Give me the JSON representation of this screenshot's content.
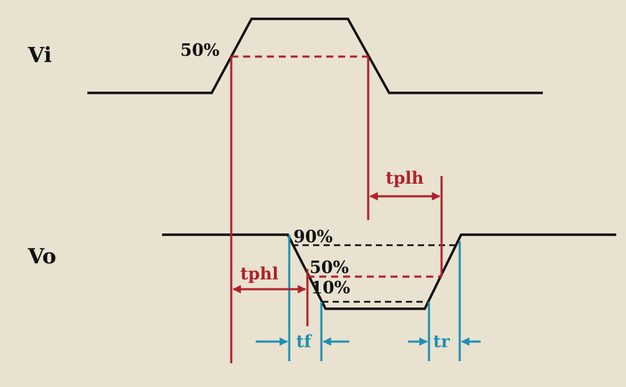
{
  "signals": {
    "input_label": "Vi",
    "output_label": "Vo"
  },
  "levels": {
    "vi_mid": "50%",
    "vo_high": "90%",
    "vo_mid": "50%",
    "vo_low": "10%"
  },
  "timing": {
    "tplh": "tplh",
    "tphl": "tphl",
    "tf": "tf",
    "tr": "tr"
  },
  "colors": {
    "background": "#e9e2d0",
    "waveform": "#111111",
    "propagation": "#b0202a",
    "transition": "#1e8fb3"
  }
}
